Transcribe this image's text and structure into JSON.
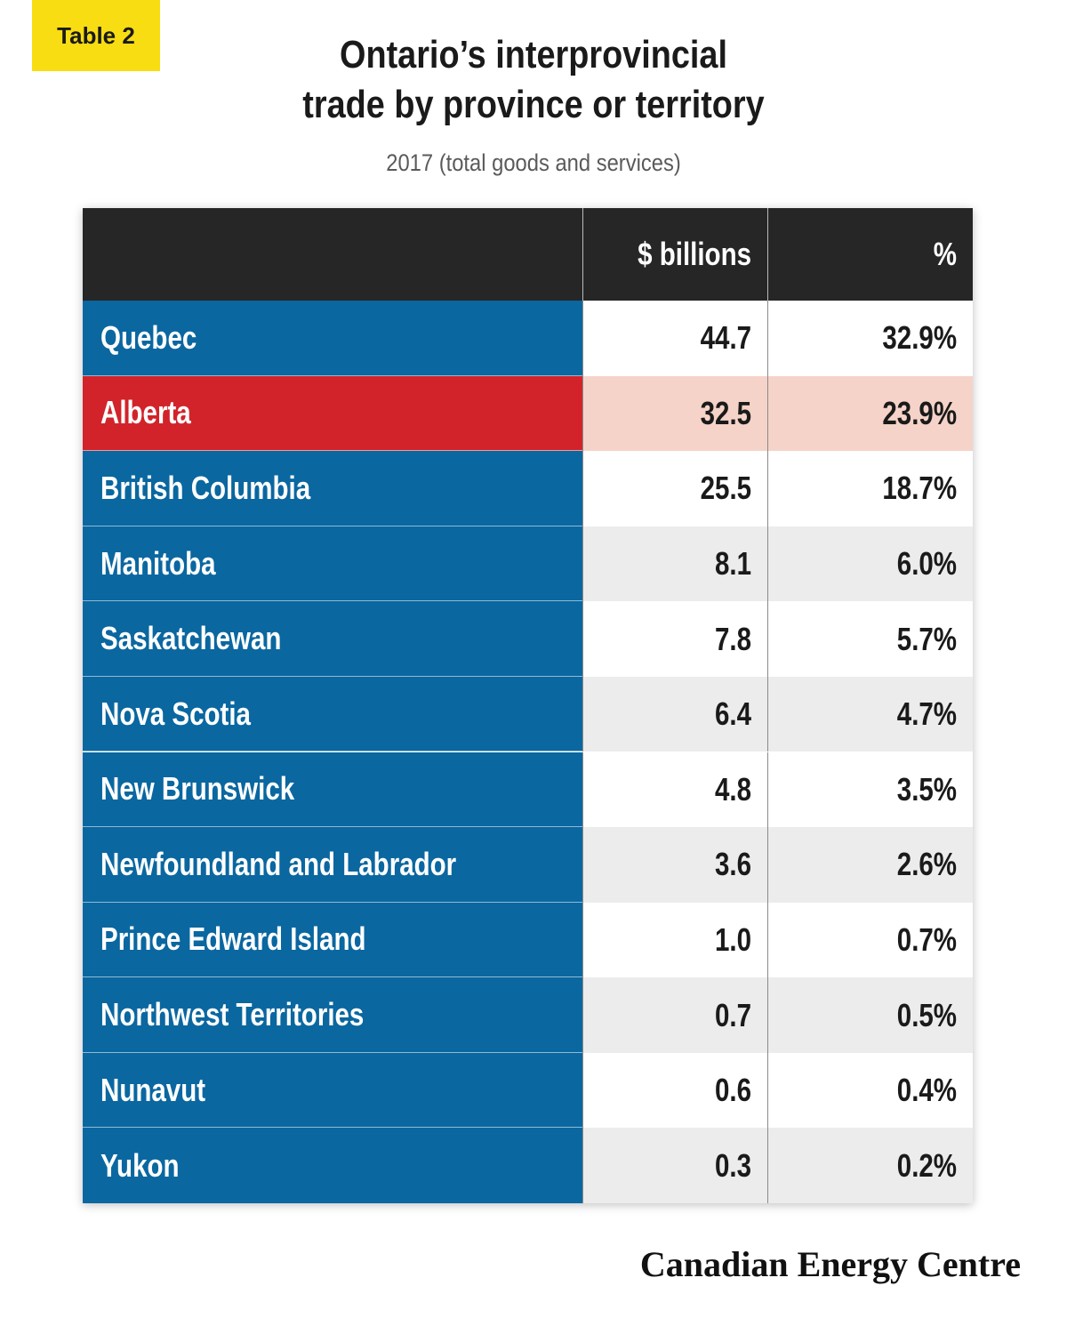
{
  "badge": "Table 2",
  "title_line1": "Ontario’s interprovincial",
  "title_line2": "trade by province or territory",
  "subtitle": "2017 (total goods and services)",
  "colors": {
    "name_cell": "#0a67a0",
    "highlight_name": "#d2232a",
    "highlight_value": "#f5d3c8",
    "header": "#262626",
    "row_white": "#ffffff",
    "row_grey": "#ececec"
  },
  "chart_data": {
    "type": "table",
    "columns": [
      "",
      "$ billions",
      "%"
    ],
    "rows": [
      {
        "name": "Quebec",
        "billions": "44.7",
        "percent": "32.9%"
      },
      {
        "name": "Alberta",
        "billions": "32.5",
        "percent": "23.9%",
        "highlight": true
      },
      {
        "name": "British Columbia",
        "billions": "25.5",
        "percent": "18.7%"
      },
      {
        "name": "Manitoba",
        "billions": "8.1",
        "percent": "6.0%"
      },
      {
        "name": "Saskatchewan",
        "billions": "7.8",
        "percent": "5.7%"
      },
      {
        "name": "Nova Scotia",
        "billions": "6.4",
        "percent": "4.7%"
      },
      {
        "name": "New Brunswick",
        "billions": "4.8",
        "percent": "3.5%"
      },
      {
        "name": "Newfoundland and Labrador",
        "billions": "3.6",
        "percent": "2.6%"
      },
      {
        "name": "Prince Edward Island",
        "billions": "1.0",
        "percent": "0.7%"
      },
      {
        "name": "Northwest Territories",
        "billions": "0.7",
        "percent": "0.5%"
      },
      {
        "name": "Nunavut",
        "billions": "0.6",
        "percent": "0.4%"
      },
      {
        "name": "Yukon",
        "billions": "0.3",
        "percent": "0.2%"
      }
    ]
  },
  "footer_logo": "Canadian Energy Centre"
}
